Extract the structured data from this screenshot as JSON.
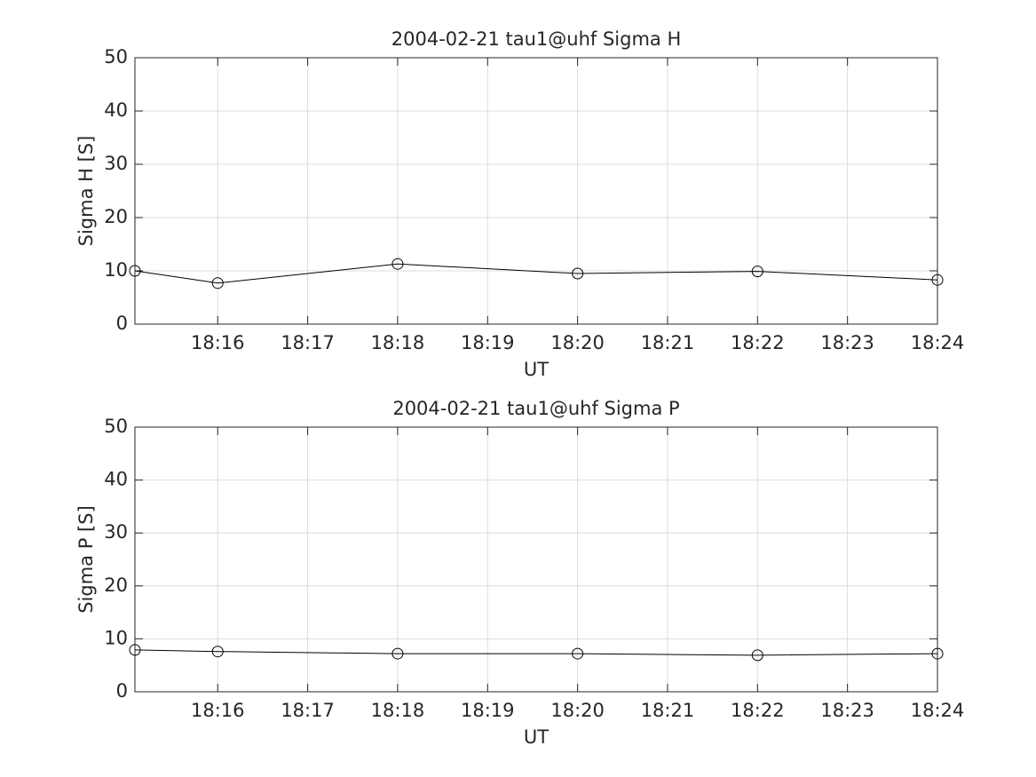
{
  "chart_data": [
    {
      "type": "line",
      "title": "2004-02-21  tau1@uhf Sigma H",
      "xlabel": "UT",
      "ylabel": "Sigma H [S]",
      "x": [
        1095.08,
        1096,
        1098,
        1100,
        1102,
        1104
      ],
      "series": [
        {
          "color": "#000000",
          "marker": "circle",
          "values": [
            10,
            7.7,
            11.3,
            9.5,
            9.9,
            8.3
          ]
        }
      ],
      "xlim": [
        1095.08,
        1104
      ],
      "xticks": [
        {
          "value": 1096,
          "label": "18:16"
        },
        {
          "value": 1097,
          "label": "18:17"
        },
        {
          "value": 1098,
          "label": "18:18"
        },
        {
          "value": 1099,
          "label": "18:19"
        },
        {
          "value": 1100,
          "label": "18:20"
        },
        {
          "value": 1101,
          "label": "18:21"
        },
        {
          "value": 1102,
          "label": "18:22"
        },
        {
          "value": 1103,
          "label": "18:23"
        },
        {
          "value": 1104,
          "label": "18:24"
        }
      ],
      "ylim": [
        0,
        50
      ],
      "yticks": [
        0,
        10,
        20,
        30,
        40,
        50
      ],
      "grid": true
    },
    {
      "type": "line",
      "title": "2004-02-21  tau1@uhf Sigma P",
      "xlabel": "UT",
      "ylabel": "Sigma P [S]",
      "x": [
        1095.08,
        1096,
        1098,
        1100,
        1102,
        1104
      ],
      "series": [
        {
          "color": "#000000",
          "marker": "circle",
          "values": [
            7.9,
            7.6,
            7.2,
            7.2,
            6.9,
            7.2
          ]
        }
      ],
      "xlim": [
        1095.08,
        1104
      ],
      "xticks": [
        {
          "value": 1096,
          "label": "18:16"
        },
        {
          "value": 1097,
          "label": "18:17"
        },
        {
          "value": 1098,
          "label": "18:18"
        },
        {
          "value": 1099,
          "label": "18:19"
        },
        {
          "value": 1100,
          "label": "18:20"
        },
        {
          "value": 1101,
          "label": "18:21"
        },
        {
          "value": 1102,
          "label": "18:22"
        },
        {
          "value": 1103,
          "label": "18:23"
        },
        {
          "value": 1104,
          "label": "18:24"
        }
      ],
      "ylim": [
        0,
        50
      ],
      "yticks": [
        0,
        10,
        20,
        30,
        40,
        50
      ],
      "grid": true
    }
  ]
}
